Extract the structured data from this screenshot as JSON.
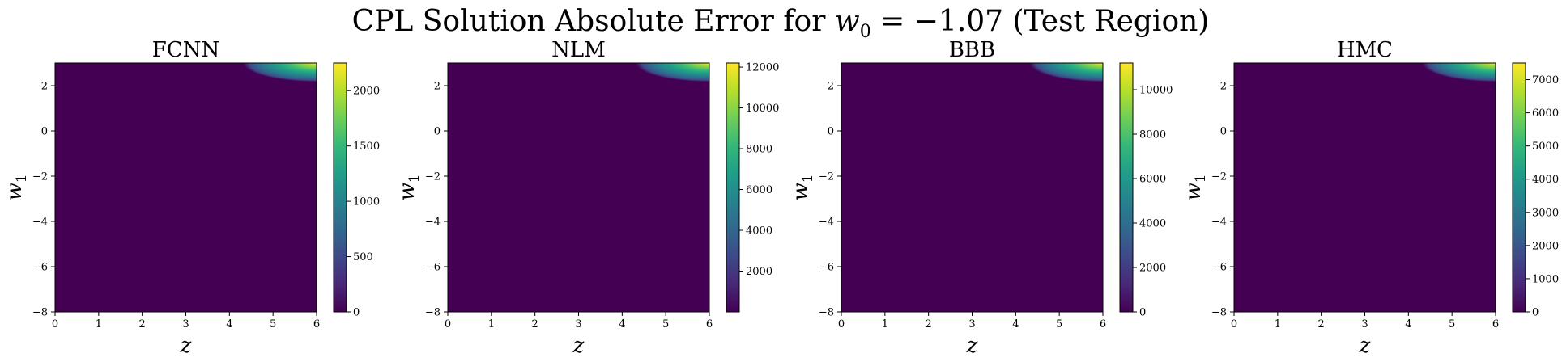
{
  "figure": {
    "title_prefix": "CPL Solution Absolute Error for ",
    "title_var": "w",
    "title_sub": "0",
    "title_suffix": " = −1.07 (Test Region)"
  },
  "colormap": [
    "#440154",
    "#482878",
    "#3e4989",
    "#31688e",
    "#26828e",
    "#1f9e89",
    "#35b779",
    "#6ece58",
    "#b5de2b",
    "#fde725"
  ],
  "chart_data": [
    {
      "type": "heatmap",
      "title": "FCNN",
      "xlabel": "z",
      "ylabel_var": "w",
      "ylabel_sub": "1",
      "xlim": [
        0,
        6
      ],
      "ylim": [
        -8,
        3
      ],
      "xticks": [
        0,
        1,
        2,
        3,
        4,
        5,
        6
      ],
      "yticks": [
        -8,
        -6,
        -4,
        -2,
        0,
        2
      ],
      "colorbar": {
        "vmin": 0,
        "vmax": 2250,
        "ticks": [
          0,
          500,
          1000,
          1500,
          2000
        ]
      },
      "error_hotspot": "top-right corner (z near 6, w1 near 3)"
    },
    {
      "type": "heatmap",
      "title": "NLM",
      "xlabel": "z",
      "ylabel_var": "w",
      "ylabel_sub": "1",
      "xlim": [
        0,
        6
      ],
      "ylim": [
        -8,
        3
      ],
      "xticks": [
        0,
        1,
        2,
        3,
        4,
        5,
        6
      ],
      "yticks": [
        -8,
        -6,
        -4,
        -2,
        0,
        2
      ],
      "colorbar": {
        "vmin": 0,
        "vmax": 12200,
        "ticks": [
          2000,
          4000,
          6000,
          8000,
          10000,
          12000
        ]
      },
      "error_hotspot": "top-right corner (z near 6, w1 near 3)"
    },
    {
      "type": "heatmap",
      "title": "BBB",
      "xlabel": "z",
      "ylabel_var": "w",
      "ylabel_sub": "1",
      "xlim": [
        0,
        6
      ],
      "ylim": [
        -8,
        3
      ],
      "xticks": [
        0,
        1,
        2,
        3,
        4,
        5,
        6
      ],
      "yticks": [
        -8,
        -6,
        -4,
        -2,
        0,
        2
      ],
      "colorbar": {
        "vmin": 0,
        "vmax": 11200,
        "ticks": [
          0,
          2000,
          4000,
          6000,
          8000,
          10000
        ]
      },
      "error_hotspot": "top-right corner (z near 6, w1 near 3)"
    },
    {
      "type": "heatmap",
      "title": "HMC",
      "xlabel": "z",
      "ylabel_var": "w",
      "ylabel_sub": "1",
      "xlim": [
        0,
        6
      ],
      "ylim": [
        -8,
        3
      ],
      "xticks": [
        0,
        1,
        2,
        3,
        4,
        5,
        6
      ],
      "yticks": [
        -8,
        -6,
        -4,
        -2,
        0,
        2
      ],
      "colorbar": {
        "vmin": 0,
        "vmax": 7500,
        "ticks": [
          0,
          1000,
          2000,
          3000,
          4000,
          5000,
          6000,
          7000
        ]
      },
      "error_hotspot": "top-right corner (z near 6, w1 near 3)"
    }
  ]
}
